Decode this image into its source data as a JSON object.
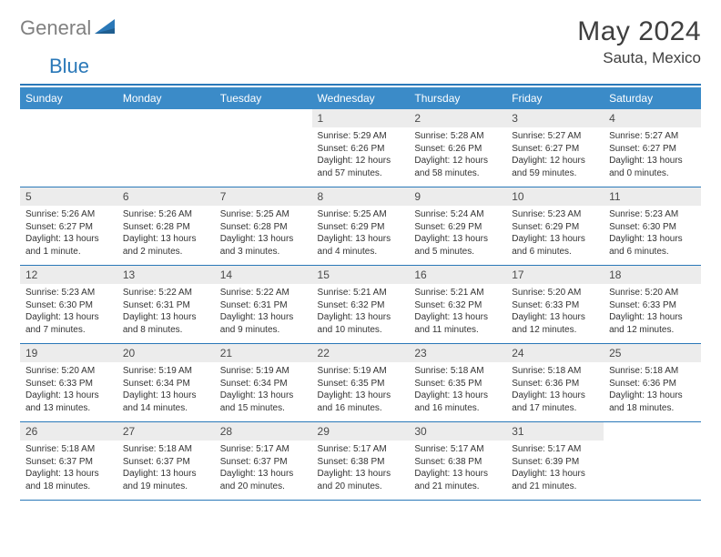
{
  "brand": {
    "general": "General",
    "blue": "Blue"
  },
  "title": "May 2024",
  "location": "Sauta, Mexico",
  "colors": {
    "accent": "#3b8bc8",
    "rule": "#2a78b8",
    "dayband": "#ececec",
    "text": "#333333",
    "title": "#3f3f3f",
    "brandGray": "#808080"
  },
  "dow": [
    "Sunday",
    "Monday",
    "Tuesday",
    "Wednesday",
    "Thursday",
    "Friday",
    "Saturday"
  ],
  "weeks": [
    [
      {
        "n": "",
        "sr": "",
        "ss": "",
        "dl": ""
      },
      {
        "n": "",
        "sr": "",
        "ss": "",
        "dl": ""
      },
      {
        "n": "",
        "sr": "",
        "ss": "",
        "dl": ""
      },
      {
        "n": "1",
        "sr": "Sunrise: 5:29 AM",
        "ss": "Sunset: 6:26 PM",
        "dl": "Daylight: 12 hours and 57 minutes."
      },
      {
        "n": "2",
        "sr": "Sunrise: 5:28 AM",
        "ss": "Sunset: 6:26 PM",
        "dl": "Daylight: 12 hours and 58 minutes."
      },
      {
        "n": "3",
        "sr": "Sunrise: 5:27 AM",
        "ss": "Sunset: 6:27 PM",
        "dl": "Daylight: 12 hours and 59 minutes."
      },
      {
        "n": "4",
        "sr": "Sunrise: 5:27 AM",
        "ss": "Sunset: 6:27 PM",
        "dl": "Daylight: 13 hours and 0 minutes."
      }
    ],
    [
      {
        "n": "5",
        "sr": "Sunrise: 5:26 AM",
        "ss": "Sunset: 6:27 PM",
        "dl": "Daylight: 13 hours and 1 minute."
      },
      {
        "n": "6",
        "sr": "Sunrise: 5:26 AM",
        "ss": "Sunset: 6:28 PM",
        "dl": "Daylight: 13 hours and 2 minutes."
      },
      {
        "n": "7",
        "sr": "Sunrise: 5:25 AM",
        "ss": "Sunset: 6:28 PM",
        "dl": "Daylight: 13 hours and 3 minutes."
      },
      {
        "n": "8",
        "sr": "Sunrise: 5:25 AM",
        "ss": "Sunset: 6:29 PM",
        "dl": "Daylight: 13 hours and 4 minutes."
      },
      {
        "n": "9",
        "sr": "Sunrise: 5:24 AM",
        "ss": "Sunset: 6:29 PM",
        "dl": "Daylight: 13 hours and 5 minutes."
      },
      {
        "n": "10",
        "sr": "Sunrise: 5:23 AM",
        "ss": "Sunset: 6:29 PM",
        "dl": "Daylight: 13 hours and 6 minutes."
      },
      {
        "n": "11",
        "sr": "Sunrise: 5:23 AM",
        "ss": "Sunset: 6:30 PM",
        "dl": "Daylight: 13 hours and 6 minutes."
      }
    ],
    [
      {
        "n": "12",
        "sr": "Sunrise: 5:23 AM",
        "ss": "Sunset: 6:30 PM",
        "dl": "Daylight: 13 hours and 7 minutes."
      },
      {
        "n": "13",
        "sr": "Sunrise: 5:22 AM",
        "ss": "Sunset: 6:31 PM",
        "dl": "Daylight: 13 hours and 8 minutes."
      },
      {
        "n": "14",
        "sr": "Sunrise: 5:22 AM",
        "ss": "Sunset: 6:31 PM",
        "dl": "Daylight: 13 hours and 9 minutes."
      },
      {
        "n": "15",
        "sr": "Sunrise: 5:21 AM",
        "ss": "Sunset: 6:32 PM",
        "dl": "Daylight: 13 hours and 10 minutes."
      },
      {
        "n": "16",
        "sr": "Sunrise: 5:21 AM",
        "ss": "Sunset: 6:32 PM",
        "dl": "Daylight: 13 hours and 11 minutes."
      },
      {
        "n": "17",
        "sr": "Sunrise: 5:20 AM",
        "ss": "Sunset: 6:33 PM",
        "dl": "Daylight: 13 hours and 12 minutes."
      },
      {
        "n": "18",
        "sr": "Sunrise: 5:20 AM",
        "ss": "Sunset: 6:33 PM",
        "dl": "Daylight: 13 hours and 12 minutes."
      }
    ],
    [
      {
        "n": "19",
        "sr": "Sunrise: 5:20 AM",
        "ss": "Sunset: 6:33 PM",
        "dl": "Daylight: 13 hours and 13 minutes."
      },
      {
        "n": "20",
        "sr": "Sunrise: 5:19 AM",
        "ss": "Sunset: 6:34 PM",
        "dl": "Daylight: 13 hours and 14 minutes."
      },
      {
        "n": "21",
        "sr": "Sunrise: 5:19 AM",
        "ss": "Sunset: 6:34 PM",
        "dl": "Daylight: 13 hours and 15 minutes."
      },
      {
        "n": "22",
        "sr": "Sunrise: 5:19 AM",
        "ss": "Sunset: 6:35 PM",
        "dl": "Daylight: 13 hours and 16 minutes."
      },
      {
        "n": "23",
        "sr": "Sunrise: 5:18 AM",
        "ss": "Sunset: 6:35 PM",
        "dl": "Daylight: 13 hours and 16 minutes."
      },
      {
        "n": "24",
        "sr": "Sunrise: 5:18 AM",
        "ss": "Sunset: 6:36 PM",
        "dl": "Daylight: 13 hours and 17 minutes."
      },
      {
        "n": "25",
        "sr": "Sunrise: 5:18 AM",
        "ss": "Sunset: 6:36 PM",
        "dl": "Daylight: 13 hours and 18 minutes."
      }
    ],
    [
      {
        "n": "26",
        "sr": "Sunrise: 5:18 AM",
        "ss": "Sunset: 6:37 PM",
        "dl": "Daylight: 13 hours and 18 minutes."
      },
      {
        "n": "27",
        "sr": "Sunrise: 5:18 AM",
        "ss": "Sunset: 6:37 PM",
        "dl": "Daylight: 13 hours and 19 minutes."
      },
      {
        "n": "28",
        "sr": "Sunrise: 5:17 AM",
        "ss": "Sunset: 6:37 PM",
        "dl": "Daylight: 13 hours and 20 minutes."
      },
      {
        "n": "29",
        "sr": "Sunrise: 5:17 AM",
        "ss": "Sunset: 6:38 PM",
        "dl": "Daylight: 13 hours and 20 minutes."
      },
      {
        "n": "30",
        "sr": "Sunrise: 5:17 AM",
        "ss": "Sunset: 6:38 PM",
        "dl": "Daylight: 13 hours and 21 minutes."
      },
      {
        "n": "31",
        "sr": "Sunrise: 5:17 AM",
        "ss": "Sunset: 6:39 PM",
        "dl": "Daylight: 13 hours and 21 minutes."
      },
      {
        "n": "",
        "sr": "",
        "ss": "",
        "dl": ""
      }
    ]
  ]
}
